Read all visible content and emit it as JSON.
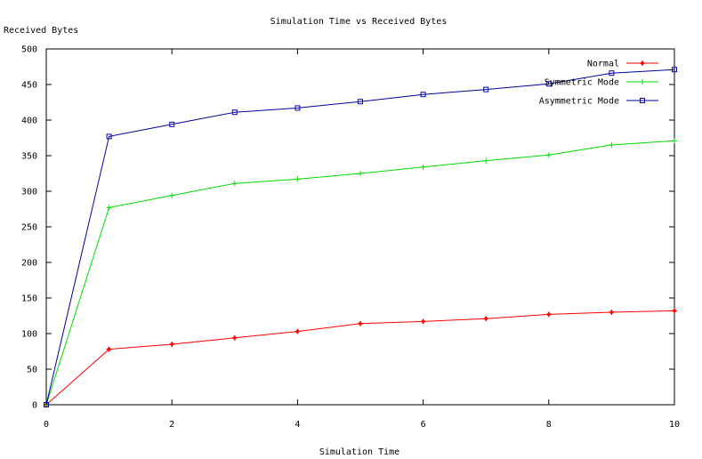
{
  "chart_data": {
    "type": "line",
    "title": "Simulation Time vs Received Bytes",
    "xlabel": "Simulation Time",
    "ylabel": "Received Bytes",
    "xlim": [
      0,
      10
    ],
    "ylim": [
      0,
      500
    ],
    "x_ticks": [
      "0",
      "2",
      "4",
      "6",
      "8",
      "10"
    ],
    "y_ticks": [
      "0",
      "50",
      "100",
      "150",
      "200",
      "250",
      "300",
      "350",
      "400",
      "450",
      "500"
    ],
    "grid": false,
    "legend_position": "top-right",
    "x": [
      0,
      1,
      2,
      3,
      4,
      5,
      6,
      7,
      8,
      9,
      10
    ],
    "series": [
      {
        "name": "Normal",
        "marker": "plus-diamond",
        "color": "#ff0000",
        "values": [
          0,
          78,
          85,
          94,
          103,
          114,
          117,
          121,
          127,
          130,
          132
        ]
      },
      {
        "name": "Symmetric Mode",
        "marker": "plus",
        "color": "#00dd00",
        "values": [
          0,
          277,
          294,
          311,
          317,
          325,
          334,
          343,
          351,
          365,
          371
        ]
      },
      {
        "name": "Asymmetric Mode",
        "marker": "square",
        "color": "#0000a0",
        "values": [
          0,
          377,
          394,
          411,
          417,
          426,
          436,
          443,
          451,
          466,
          471
        ]
      }
    ]
  }
}
